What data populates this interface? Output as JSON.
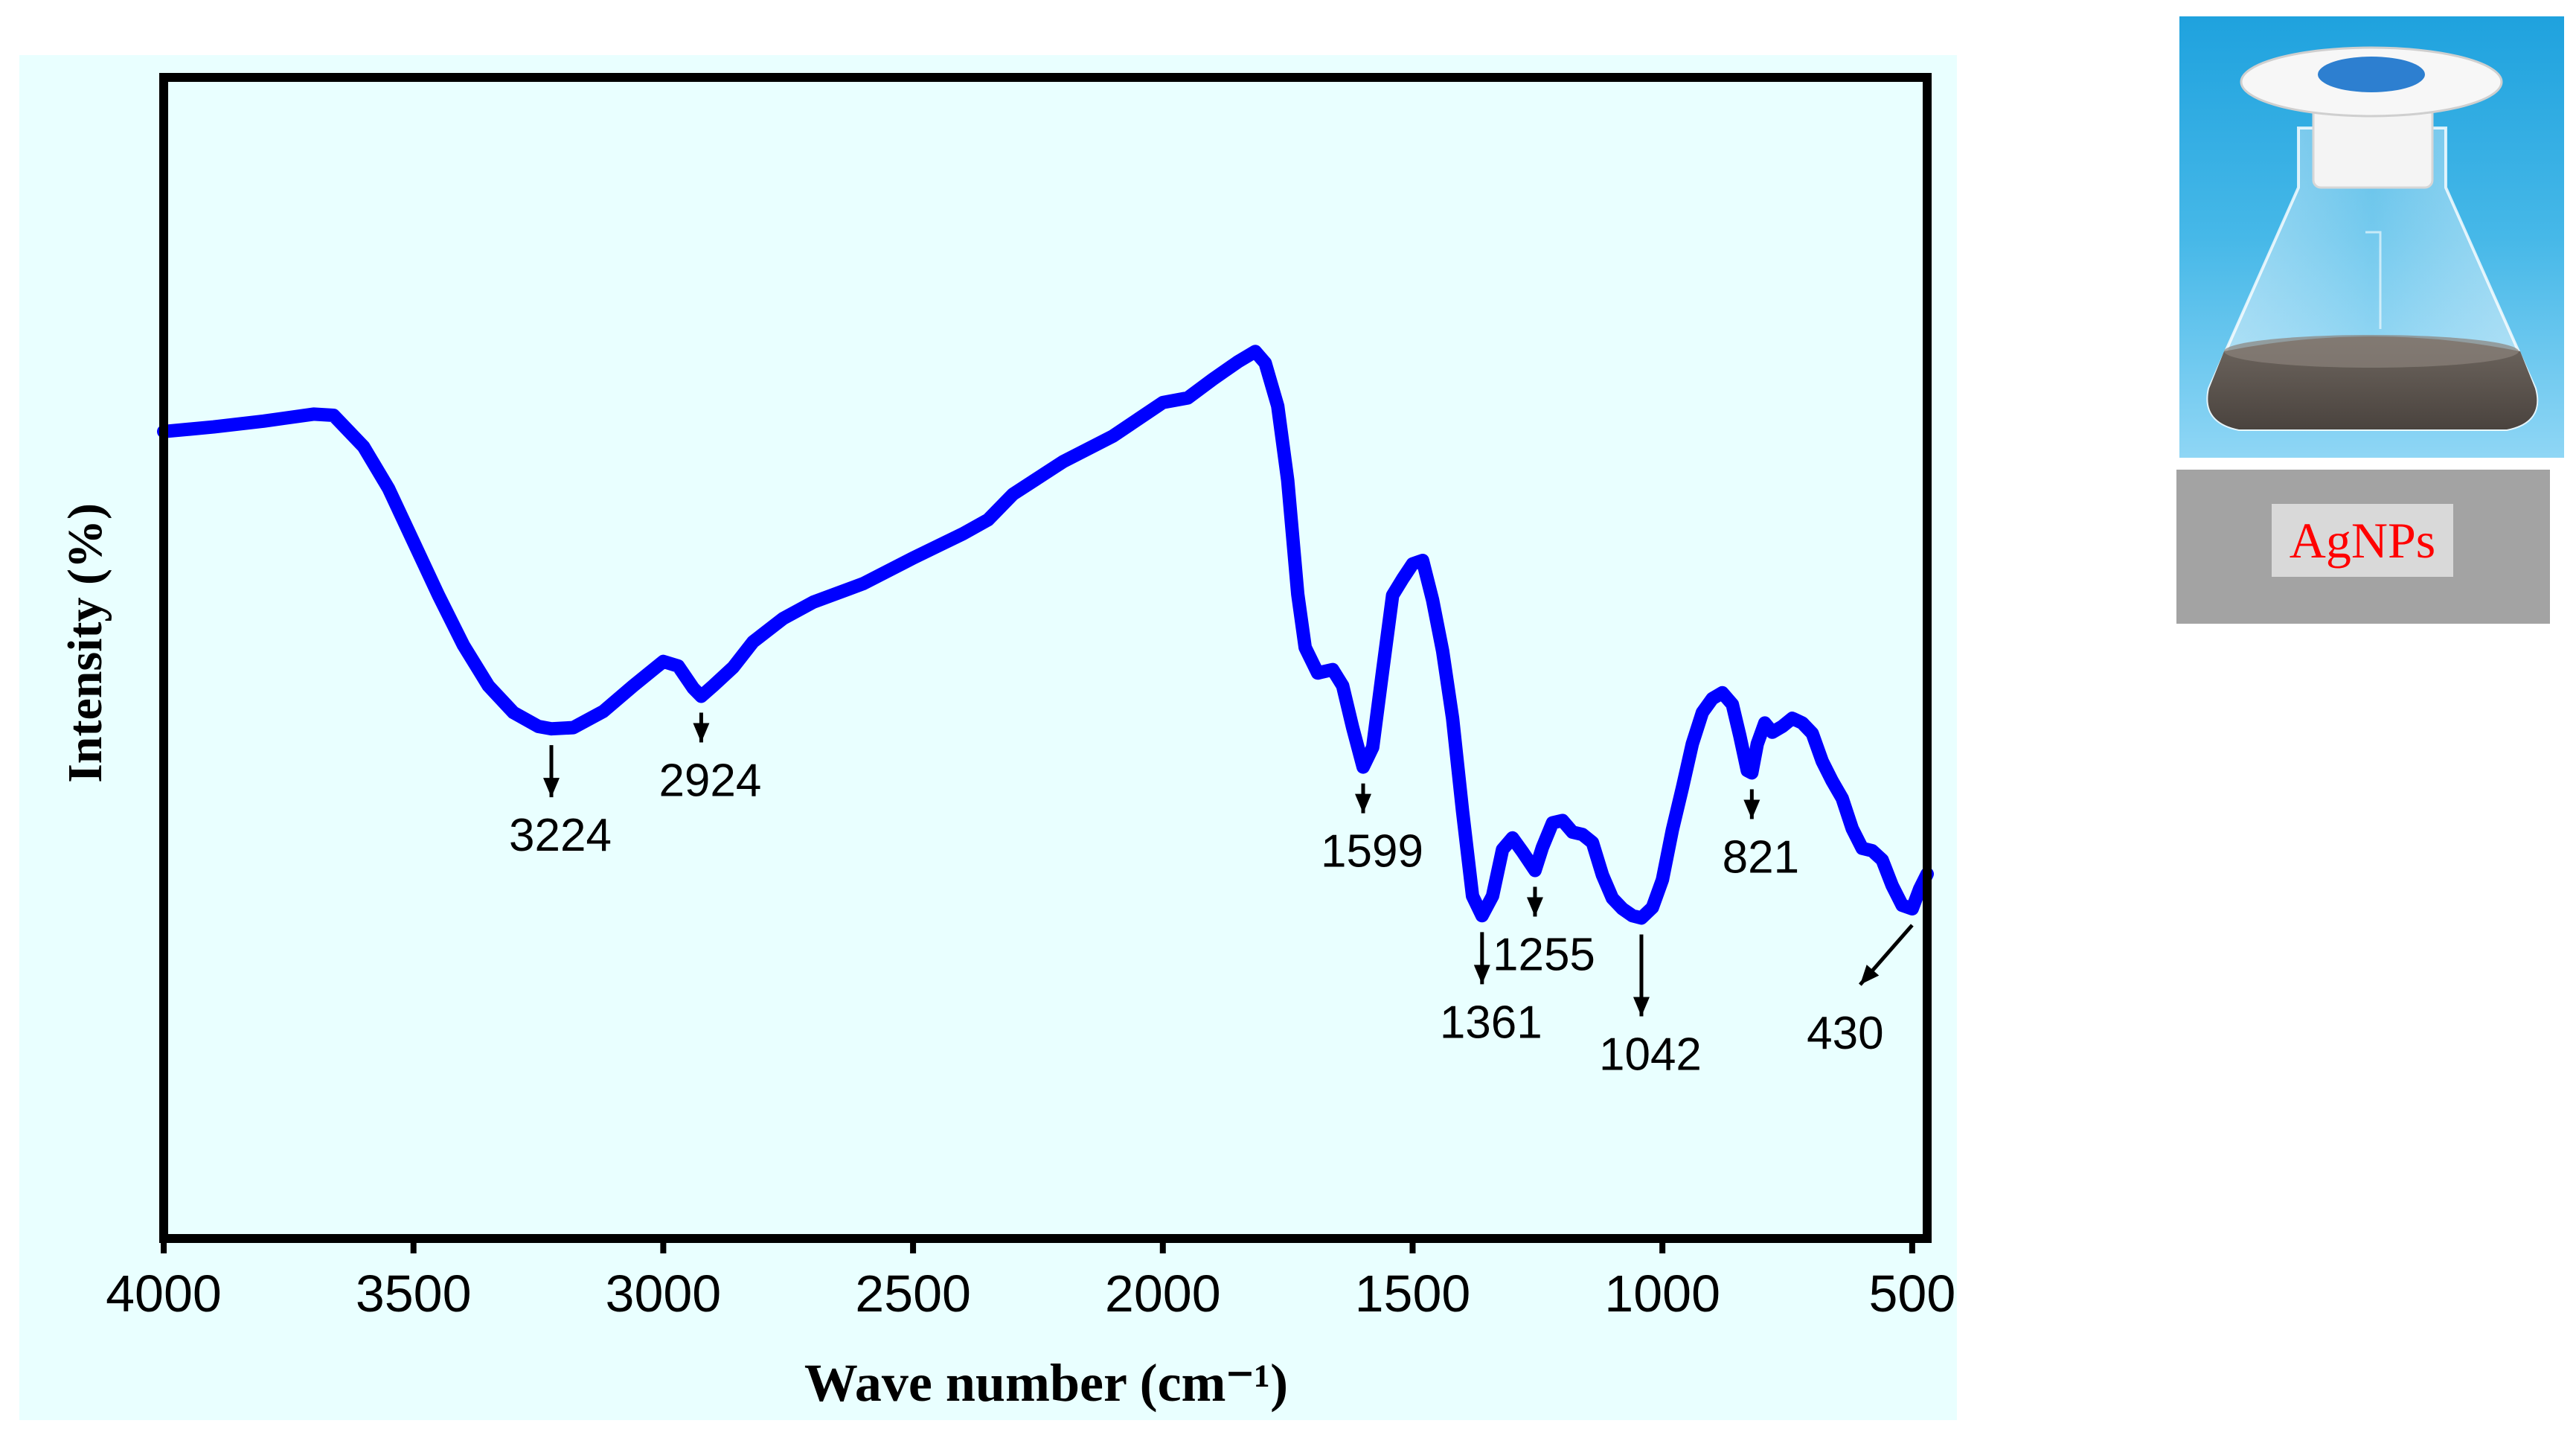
{
  "colors": {
    "plot_background": "#e9ffff",
    "curve": "#0000ff",
    "axis": "#000000",
    "label_box": "#a3a3a3",
    "label_text": "#ff0000",
    "label_highlight": "#d9d9d9"
  },
  "chart_data": {
    "type": "line",
    "title": "",
    "xlabel": "Wave number (cm⁻¹)",
    "ylabel": "Intensity (%)",
    "xlim": [
      4000,
      470
    ],
    "x_reversed": true,
    "ylim": [
      0,
      100
    ],
    "y_ticks_shown": false,
    "grid": false,
    "legend": "none",
    "xticks": [
      4000,
      3500,
      3000,
      2500,
      2000,
      1500,
      1000,
      500
    ],
    "series": [
      {
        "points": [
          [
            4000,
            69.5
          ],
          [
            3900,
            69.9
          ],
          [
            3800,
            70.4
          ],
          [
            3700,
            71.0
          ],
          [
            3660,
            70.9
          ],
          [
            3600,
            68.2
          ],
          [
            3550,
            64.6
          ],
          [
            3500,
            60.0
          ],
          [
            3450,
            55.4
          ],
          [
            3400,
            51.1
          ],
          [
            3350,
            47.6
          ],
          [
            3300,
            45.3
          ],
          [
            3250,
            44.1
          ],
          [
            3224,
            43.9
          ],
          [
            3180,
            44.0
          ],
          [
            3120,
            45.4
          ],
          [
            3060,
            47.6
          ],
          [
            3000,
            49.7
          ],
          [
            2970,
            49.3
          ],
          [
            2940,
            47.4
          ],
          [
            2924,
            46.7
          ],
          [
            2900,
            47.6
          ],
          [
            2860,
            49.2
          ],
          [
            2820,
            51.4
          ],
          [
            2760,
            53.4
          ],
          [
            2700,
            54.8
          ],
          [
            2600,
            56.4
          ],
          [
            2500,
            58.6
          ],
          [
            2400,
            60.7
          ],
          [
            2350,
            61.9
          ],
          [
            2300,
            64.1
          ],
          [
            2200,
            66.9
          ],
          [
            2100,
            69.1
          ],
          [
            2000,
            72.0
          ],
          [
            1950,
            72.4
          ],
          [
            1900,
            74.0
          ],
          [
            1850,
            75.5
          ],
          [
            1815,
            76.4
          ],
          [
            1795,
            75.4
          ],
          [
            1770,
            71.7
          ],
          [
            1750,
            65.3
          ],
          [
            1730,
            55.5
          ],
          [
            1715,
            50.9
          ],
          [
            1690,
            48.7
          ],
          [
            1660,
            49.0
          ],
          [
            1640,
            47.6
          ],
          [
            1620,
            44.0
          ],
          [
            1599,
            40.6
          ],
          [
            1580,
            42.3
          ],
          [
            1560,
            48.9
          ],
          [
            1540,
            55.4
          ],
          [
            1520,
            56.8
          ],
          [
            1500,
            58.1
          ],
          [
            1480,
            58.4
          ],
          [
            1460,
            55.0
          ],
          [
            1440,
            50.6
          ],
          [
            1420,
            44.8
          ],
          [
            1400,
            36.8
          ],
          [
            1380,
            29.5
          ],
          [
            1361,
            27.8
          ],
          [
            1340,
            29.5
          ],
          [
            1320,
            33.5
          ],
          [
            1300,
            34.5
          ],
          [
            1280,
            33.3
          ],
          [
            1255,
            31.7
          ],
          [
            1240,
            33.7
          ],
          [
            1220,
            35.8
          ],
          [
            1200,
            36.0
          ],
          [
            1180,
            35.0
          ],
          [
            1160,
            34.8
          ],
          [
            1140,
            34.1
          ],
          [
            1120,
            31.3
          ],
          [
            1100,
            29.3
          ],
          [
            1080,
            28.4
          ],
          [
            1060,
            27.8
          ],
          [
            1042,
            27.6
          ],
          [
            1020,
            28.5
          ],
          [
            1000,
            30.9
          ],
          [
            980,
            35.2
          ],
          [
            960,
            38.8
          ],
          [
            940,
            42.6
          ],
          [
            920,
            45.3
          ],
          [
            900,
            46.5
          ],
          [
            880,
            47.0
          ],
          [
            860,
            46.0
          ],
          [
            845,
            43.3
          ],
          [
            830,
            40.3
          ],
          [
            821,
            40.1
          ],
          [
            810,
            42.6
          ],
          [
            795,
            44.4
          ],
          [
            780,
            43.6
          ],
          [
            760,
            44.1
          ],
          [
            740,
            44.8
          ],
          [
            720,
            44.4
          ],
          [
            700,
            43.5
          ],
          [
            680,
            41.1
          ],
          [
            660,
            39.4
          ],
          [
            640,
            37.9
          ],
          [
            620,
            35.3
          ],
          [
            600,
            33.6
          ],
          [
            580,
            33.4
          ],
          [
            560,
            32.6
          ],
          [
            540,
            30.4
          ],
          [
            520,
            28.7
          ],
          [
            500,
            28.4
          ],
          [
            485,
            30.1
          ],
          [
            470,
            31.4
          ]
        ]
      }
    ],
    "annotations": [
      {
        "text": "3224",
        "x": 3224,
        "y": 43.9,
        "arrow": "down"
      },
      {
        "text": "2924",
        "x": 2924,
        "y": 46.7,
        "arrow": "down"
      },
      {
        "text": "1599",
        "x": 1599,
        "y": 40.6,
        "arrow": "down"
      },
      {
        "text": "1361",
        "x": 1361,
        "y": 27.8,
        "arrow": "down"
      },
      {
        "text": "1255",
        "x": 1255,
        "y": 31.7,
        "arrow": "down"
      },
      {
        "text": "1042",
        "x": 1042,
        "y": 27.6,
        "arrow": "down"
      },
      {
        "text": "821",
        "x": 821,
        "y": 40.1,
        "arrow": "down"
      },
      {
        "text": "430",
        "x": 500,
        "y": 28.4,
        "arrow": "diagonal"
      }
    ]
  },
  "photo": {
    "label": "AgNPs"
  }
}
